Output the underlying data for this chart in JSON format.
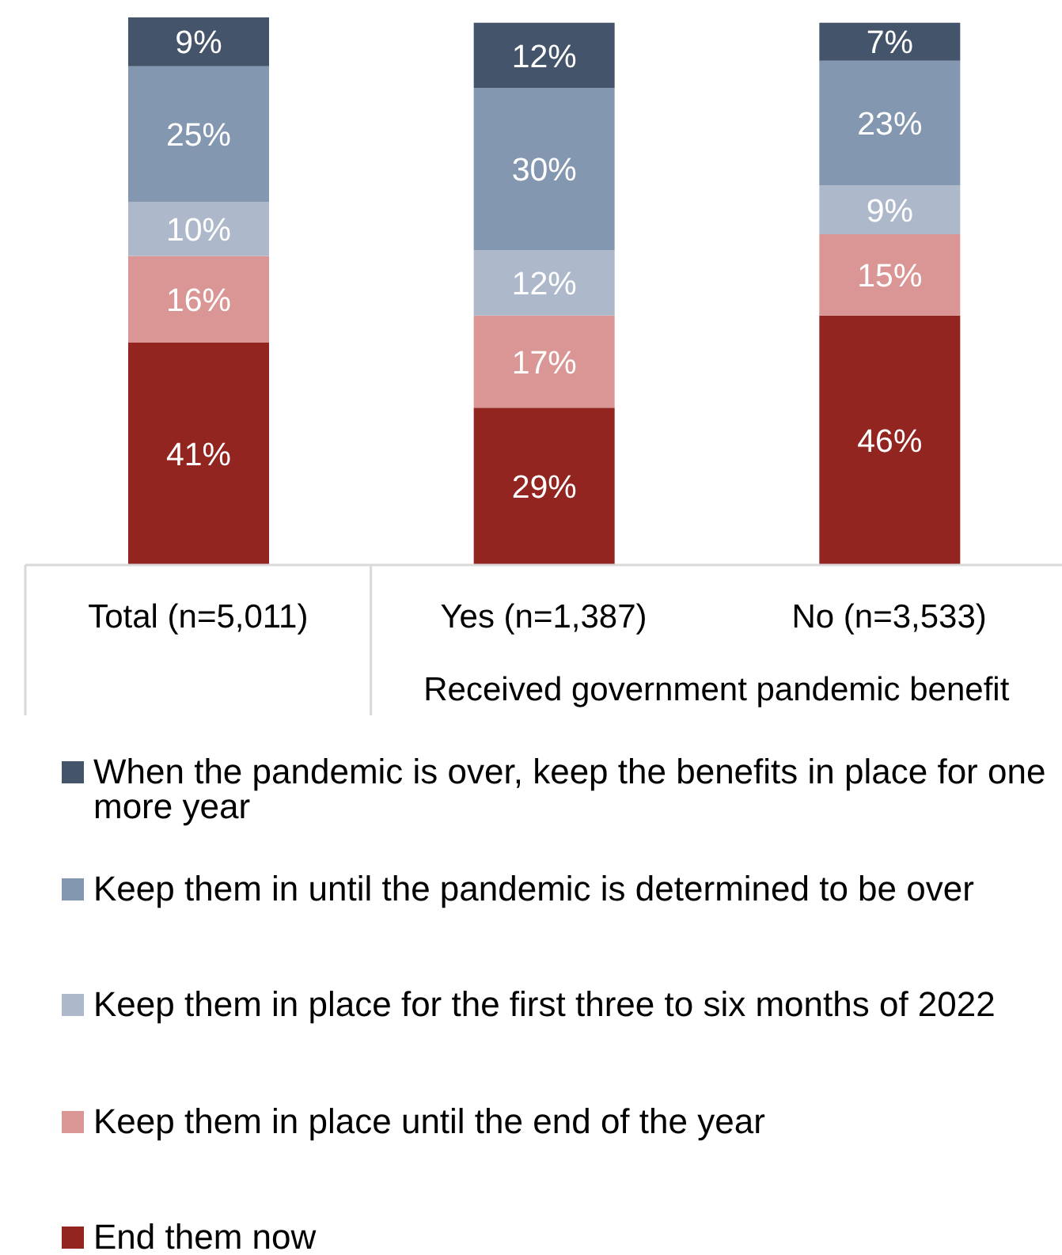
{
  "chart_data": {
    "type": "bar",
    "stacked": true,
    "tick_labels": "x",
    "legend": "bottom",
    "categories": [
      "Total (n=5,011)",
      "Yes (n=1,387)",
      "No (n=3,533)"
    ],
    "series": [
      {
        "name": "End them now",
        "color": "#922520",
        "values": [
          41,
          29,
          46
        ],
        "value_labels": [
          "41%",
          "29%",
          "46%"
        ]
      },
      {
        "name": "Keep them in place until the end of the year",
        "color": "#da9694",
        "values": [
          16,
          17,
          15
        ],
        "value_labels": [
          "16%",
          "17%",
          "15%"
        ]
      },
      {
        "name": "Keep them in place for the first three to six months of 2022",
        "color": "#adb9ca",
        "values": [
          10,
          12,
          9
        ],
        "value_labels": [
          "10%",
          "12%",
          "9%"
        ]
      },
      {
        "name": "Keep them in until the pandemic is determined to be over",
        "color": "#8497b0",
        "values": [
          25,
          30,
          23
        ],
        "value_labels": [
          "25%",
          "30%",
          "23%"
        ]
      },
      {
        "name": "When the pandemic is over, keep the benefits in place for one more year",
        "color": "#44546a",
        "values": [
          9,
          12,
          7
        ],
        "value_labels": [
          "9%",
          "12%",
          "7%"
        ]
      }
    ],
    "annotations": [
      "Received government pandemic benefit"
    ]
  }
}
